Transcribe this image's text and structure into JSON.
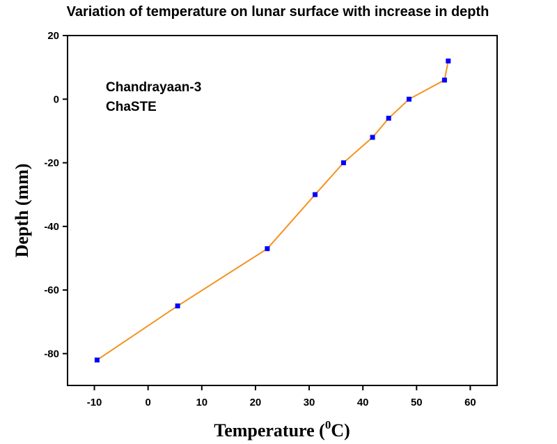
{
  "chart_data": {
    "type": "line",
    "title": "Variation of temperature on lunar surface with increase in depth",
    "xlabel_prefix": "Temperature (",
    "xlabel_sup": "0",
    "xlabel_suffix": "C)",
    "ylabel": "Depth (mm)",
    "xlim": [
      -15,
      65
    ],
    "ylim": [
      -90,
      20
    ],
    "x_ticks": [
      -10,
      0,
      10,
      20,
      30,
      40,
      50,
      60
    ],
    "y_ticks": [
      20,
      0,
      -20,
      -40,
      -60,
      -80
    ],
    "annotations": [
      "Chandrayaan-3",
      "ChaSTE"
    ],
    "series": [
      {
        "name": "ChaSTE",
        "line_color": "#f5921e",
        "marker_color": "#0000ff",
        "x": [
          -9.5,
          5.5,
          22.2,
          31.1,
          36.4,
          41.8,
          44.8,
          48.6,
          55.2,
          55.9
        ],
        "y": [
          -82,
          -65,
          -47,
          -30,
          -20,
          -12,
          -6,
          0,
          6,
          12
        ]
      }
    ]
  }
}
